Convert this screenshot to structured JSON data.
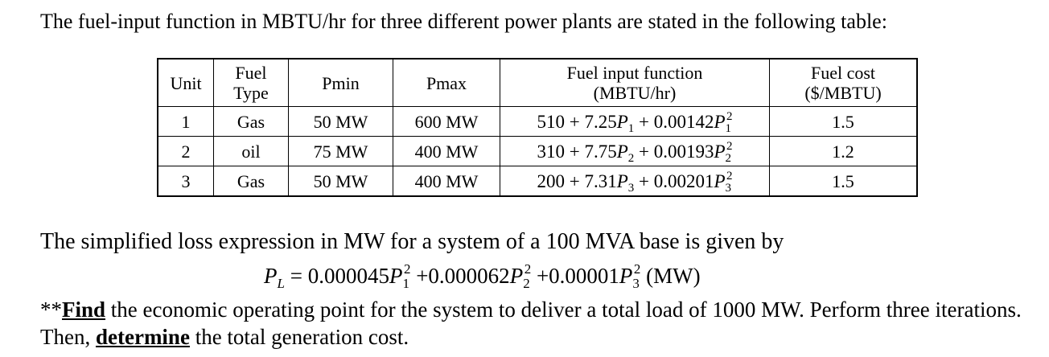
{
  "intro": "The fuel-input function in MBTU/hr for three different power plants are stated in the following table:",
  "table": {
    "headers": {
      "unit": "Unit",
      "fuel_type": [
        "Fuel",
        "Type"
      ],
      "pmin": "Pmin",
      "pmax": "Pmax",
      "function": [
        "Fuel input function",
        "(MBTU/hr)"
      ],
      "cost": [
        "Fuel cost",
        "($/MBTU)"
      ]
    },
    "rows": [
      {
        "unit": "1",
        "fuel": "Gas",
        "pmin": "50 MW",
        "pmax": "600 MW",
        "func": {
          "a": "510",
          "b": "7.25",
          "c": "0.00142",
          "var": "P",
          "sub": "1"
        },
        "cost": "1.5"
      },
      {
        "unit": "2",
        "fuel": "oil",
        "pmin": "75 MW",
        "pmax": "400 MW",
        "func": {
          "a": "310",
          "b": "7.75",
          "c": "0.00193",
          "var": "P",
          "sub": "2"
        },
        "cost": "1.2"
      },
      {
        "unit": "3",
        "fuel": "Gas",
        "pmin": "50 MW",
        "pmax": "400 MW",
        "func": {
          "a": "200",
          "b": "7.31",
          "c": "0.00201",
          "var": "P",
          "sub": "3"
        },
        "cost": "1.5"
      }
    ]
  },
  "loss": {
    "intro": "The simplified loss expression in MW for a system of a 100 MVA base is given by",
    "lhs_var": "P",
    "lhs_sub": "L",
    "coef1": "0.000045",
    "coef2": "+0.000062",
    "coef3": "+0.00001",
    "unit": "(MW)"
  },
  "task": {
    "prefix": "**",
    "find": "Find",
    "middle": " the economic operating point for the system to deliver a total load of 1000 MW. Perform three iterations. Then, ",
    "determine": "determine",
    "suffix": " the total generation cost."
  }
}
